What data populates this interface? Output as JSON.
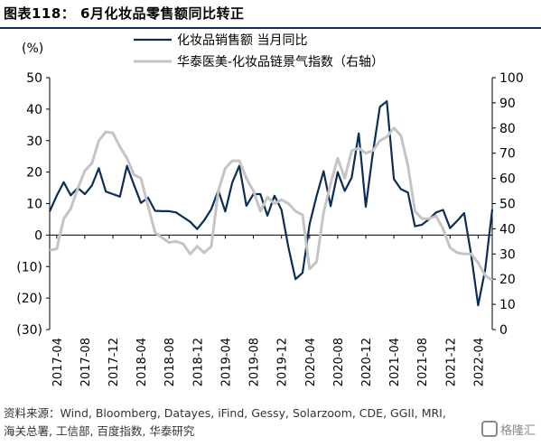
{
  "header": {
    "title": "图表118： 6月化妆品零售额同比转正"
  },
  "footer": {
    "source": "资料来源：Wind, Bloomberg, Datayes, iFind, Gessy, Solarzoom, CDE, GGII, MRI, 海关总署, 工信部, 百度指数, 华泰研究",
    "watermark": "格隆汇"
  },
  "chart_data": {
    "type": "line",
    "title": "",
    "ylabel_left": "(%)",
    "ylabel_right": "",
    "ylim_left": [
      -30,
      50
    ],
    "ylim_right": [
      0,
      100
    ],
    "yticks_left": [
      "(30)",
      "(20)",
      "(10)",
      "0",
      "10",
      "20",
      "30",
      "40",
      "50"
    ],
    "yticks_right": [
      "0",
      "10",
      "20",
      "30",
      "40",
      "50",
      "60",
      "70",
      "80",
      "90",
      "100"
    ],
    "x_labels": [
      "2017-04",
      "2017-08",
      "2017-12",
      "2018-04",
      "2018-08",
      "2018-12",
      "2019-04",
      "2019-08",
      "2019-12",
      "2020-04",
      "2020-08",
      "2020-12",
      "2021-04",
      "2021-08",
      "2021-12",
      "2022-04"
    ],
    "x_range": [
      "2017-03",
      "2022-06"
    ],
    "legend_position": "top-center",
    "series": [
      {
        "name": "化妆品销售额 当月同比",
        "axis": "left",
        "color": "#0b2d57",
        "points": [
          [
            "2017-03",
            7.5
          ],
          [
            "2017-04",
            12.5
          ],
          [
            "2017-05",
            16.8
          ],
          [
            "2017-06",
            12.6
          ],
          [
            "2017-07",
            15.0
          ],
          [
            "2017-08",
            13.0
          ],
          [
            "2017-09",
            15.7
          ],
          [
            "2017-10",
            21.2
          ],
          [
            "2017-11",
            13.8
          ],
          [
            "2017-12",
            13.0
          ],
          [
            "2018-01",
            12.2
          ],
          [
            "2018-02",
            22.0
          ],
          [
            "2018-03",
            16.0
          ],
          [
            "2018-04",
            10.2
          ],
          [
            "2018-05",
            11.9
          ],
          [
            "2018-06",
            7.7
          ],
          [
            "2018-07",
            7.6
          ],
          [
            "2018-08",
            7.6
          ],
          [
            "2018-09",
            7.2
          ],
          [
            "2018-10",
            5.7
          ],
          [
            "2018-11",
            4.2
          ],
          [
            "2018-12",
            1.9
          ],
          [
            "2019-01",
            4.7
          ],
          [
            "2019-02",
            8.2
          ],
          [
            "2019-03",
            14.2
          ],
          [
            "2019-04",
            7.5
          ],
          [
            "2019-05",
            16.7
          ],
          [
            "2019-06",
            22.0
          ],
          [
            "2019-07",
            9.3
          ],
          [
            "2019-08",
            13.0
          ],
          [
            "2019-09",
            13.0
          ],
          [
            "2019-10",
            6.2
          ],
          [
            "2019-11",
            12.5
          ],
          [
            "2019-12",
            8.0
          ],
          [
            "2020-01",
            -4.0
          ],
          [
            "2020-02",
            -14.0
          ],
          [
            "2020-03",
            -12.0
          ],
          [
            "2020-04",
            3.5
          ],
          [
            "2020-05",
            12.5
          ],
          [
            "2020-06",
            20.3
          ],
          [
            "2020-07",
            9.2
          ],
          [
            "2020-08",
            20.0
          ],
          [
            "2020-09",
            14.0
          ],
          [
            "2020-10",
            18.3
          ],
          [
            "2020-11",
            32.3
          ],
          [
            "2020-12",
            9.0
          ],
          [
            "2021-01",
            26.0
          ],
          [
            "2021-02",
            40.7
          ],
          [
            "2021-03",
            42.5
          ],
          [
            "2021-04",
            17.8
          ],
          [
            "2021-05",
            14.6
          ],
          [
            "2021-06",
            13.5
          ],
          [
            "2021-07",
            2.8
          ],
          [
            "2021-08",
            3.3
          ],
          [
            "2021-09",
            5.0
          ],
          [
            "2021-10",
            7.2
          ],
          [
            "2021-11",
            8.0
          ],
          [
            "2021-12",
            2.2
          ],
          [
            "2022-01",
            4.5
          ],
          [
            "2022-02",
            7.0
          ],
          [
            "2022-03",
            -6.3
          ],
          [
            "2022-04",
            -22.3
          ],
          [
            "2022-05",
            -11.0
          ],
          [
            "2022-06",
            8.1
          ]
        ]
      },
      {
        "name": "华泰医美-化妆品链景气指数（右轴）",
        "axis": "right",
        "color": "#c4c4c4",
        "points": [
          [
            "2017-03",
            31.5
          ],
          [
            "2017-04",
            32.0
          ],
          [
            "2017-05",
            44.0
          ],
          [
            "2017-06",
            48.0
          ],
          [
            "2017-07",
            56.0
          ],
          [
            "2017-08",
            63.0
          ],
          [
            "2017-09",
            66.0
          ],
          [
            "2017-10",
            75.0
          ],
          [
            "2017-11",
            78.5
          ],
          [
            "2017-12",
            78.0
          ],
          [
            "2018-01",
            72.5
          ],
          [
            "2018-02",
            68.0
          ],
          [
            "2018-03",
            61.5
          ],
          [
            "2018-04",
            60.0
          ],
          [
            "2018-05",
            49.0
          ],
          [
            "2018-06",
            38.5
          ],
          [
            "2018-07",
            36.5
          ],
          [
            "2018-08",
            34.5
          ],
          [
            "2018-09",
            35.0
          ],
          [
            "2018-10",
            34.0
          ],
          [
            "2018-11",
            30.0
          ],
          [
            "2018-12",
            33.0
          ],
          [
            "2019-01",
            30.5
          ],
          [
            "2019-02",
            33.0
          ],
          [
            "2019-03",
            55.0
          ],
          [
            "2019-04",
            64.0
          ],
          [
            "2019-05",
            67.0
          ],
          [
            "2019-06",
            67.0
          ],
          [
            "2019-07",
            60.0
          ],
          [
            "2019-08",
            55.0
          ],
          [
            "2019-09",
            47.0
          ],
          [
            "2019-10",
            52.5
          ],
          [
            "2019-11",
            50.0
          ],
          [
            "2019-12",
            51.5
          ],
          [
            "2020-01",
            50.0
          ],
          [
            "2020-02",
            47.0
          ],
          [
            "2020-03",
            45.5
          ],
          [
            "2020-04",
            24.0
          ],
          [
            "2020-05",
            27.0
          ],
          [
            "2020-06",
            46.5
          ],
          [
            "2020-07",
            58.0
          ],
          [
            "2020-08",
            68.0
          ],
          [
            "2020-09",
            60.0
          ],
          [
            "2020-10",
            71.0
          ],
          [
            "2020-11",
            72.0
          ],
          [
            "2020-12",
            70.0
          ],
          [
            "2021-01",
            71.0
          ],
          [
            "2021-02",
            75.0
          ],
          [
            "2021-03",
            76.5
          ],
          [
            "2021-04",
            80.0
          ],
          [
            "2021-05",
            77.0
          ],
          [
            "2021-06",
            65.0
          ],
          [
            "2021-07",
            47.0
          ],
          [
            "2021-08",
            44.0
          ],
          [
            "2021-09",
            44.0
          ],
          [
            "2021-10",
            45.0
          ],
          [
            "2021-11",
            40.0
          ],
          [
            "2021-12",
            32.5
          ],
          [
            "2022-01",
            30.5
          ],
          [
            "2022-02",
            30.0
          ],
          [
            "2022-03",
            30.0
          ],
          [
            "2022-04",
            26.5
          ],
          [
            "2022-05",
            21.5
          ],
          [
            "2022-06",
            19.5
          ]
        ]
      }
    ]
  }
}
